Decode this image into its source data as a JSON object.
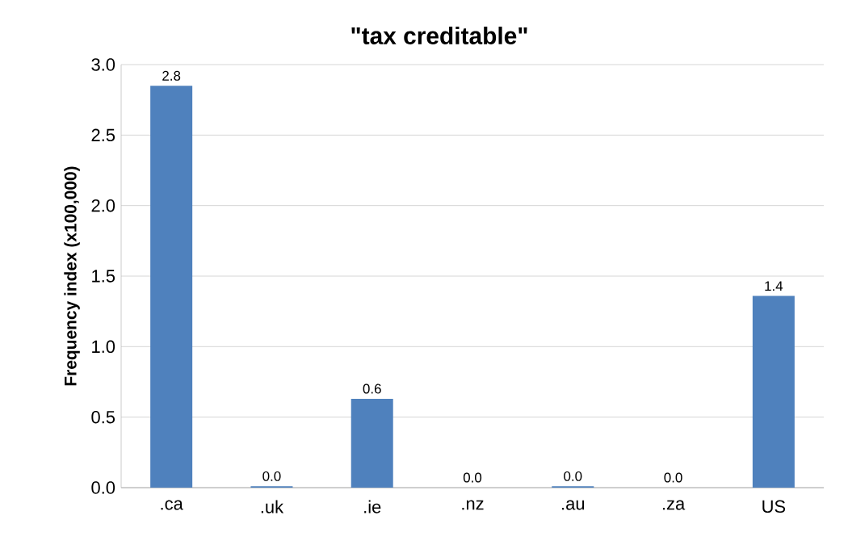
{
  "chart_data": {
    "type": "bar",
    "title": "\"tax creditable\"",
    "ylabel": "Frequency index (x100,000)",
    "categories": [
      ".ca",
      ".uk",
      ".ie",
      ".nz",
      ".au",
      ".za",
      "US"
    ],
    "values": [
      2.85,
      0.01,
      0.63,
      0,
      0.01,
      0,
      1.36
    ],
    "value_labels": [
      "2.8",
      "0.0",
      "0.6",
      "0.0",
      "0.0",
      "0.0",
      "1.4"
    ],
    "color": "#4f81bd",
    "ylim": [
      0,
      3
    ],
    "yticks": [
      {
        "value": 0,
        "label": "0.0"
      },
      {
        "value": 0.5,
        "label": "0.5"
      },
      {
        "value": 1,
        "label": "1.0"
      },
      {
        "value": 1.5,
        "label": "1.5"
      },
      {
        "value": 2,
        "label": "2.0"
      },
      {
        "value": 2.5,
        "label": "2.5"
      },
      {
        "value": 3,
        "label": "3.0"
      }
    ],
    "grid": "y"
  }
}
